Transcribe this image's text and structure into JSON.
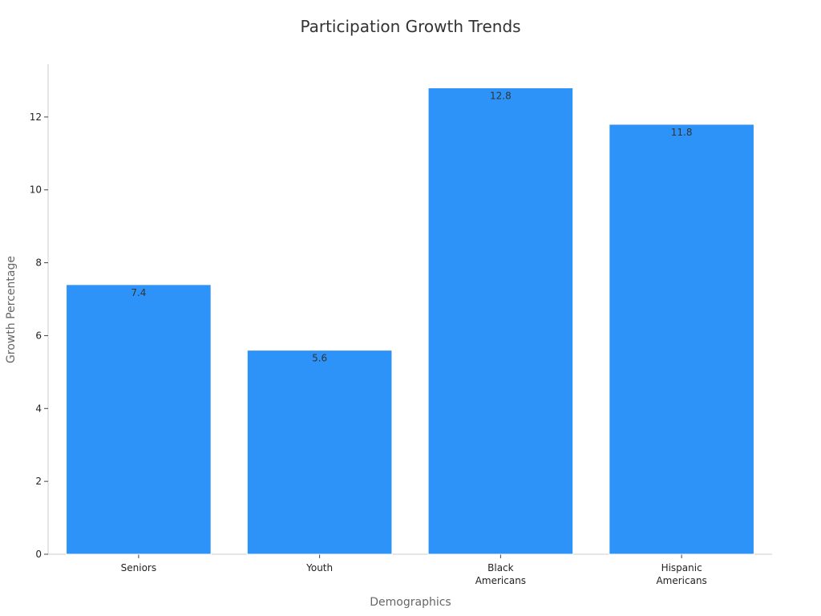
{
  "chart_data": {
    "type": "bar",
    "title": "Participation Growth Trends",
    "xlabel": "Demographics",
    "ylabel": "Growth Percentage",
    "categories": [
      [
        "Seniors"
      ],
      [
        "Youth"
      ],
      [
        "Black",
        "Americans"
      ],
      [
        "Hispanic",
        "Americans"
      ]
    ],
    "values": [
      7.4,
      5.6,
      12.8,
      11.8
    ],
    "data_labels": [
      "7.4",
      "5.6",
      "12.8",
      "11.8"
    ],
    "yticks": [
      0,
      2,
      4,
      6,
      8,
      10,
      12
    ],
    "ylim": [
      0,
      13.45
    ],
    "grid": false,
    "legend": "none"
  },
  "colors": {
    "bar": "#2e93f8",
    "axis": "#cccccc",
    "tick": "#444444"
  }
}
